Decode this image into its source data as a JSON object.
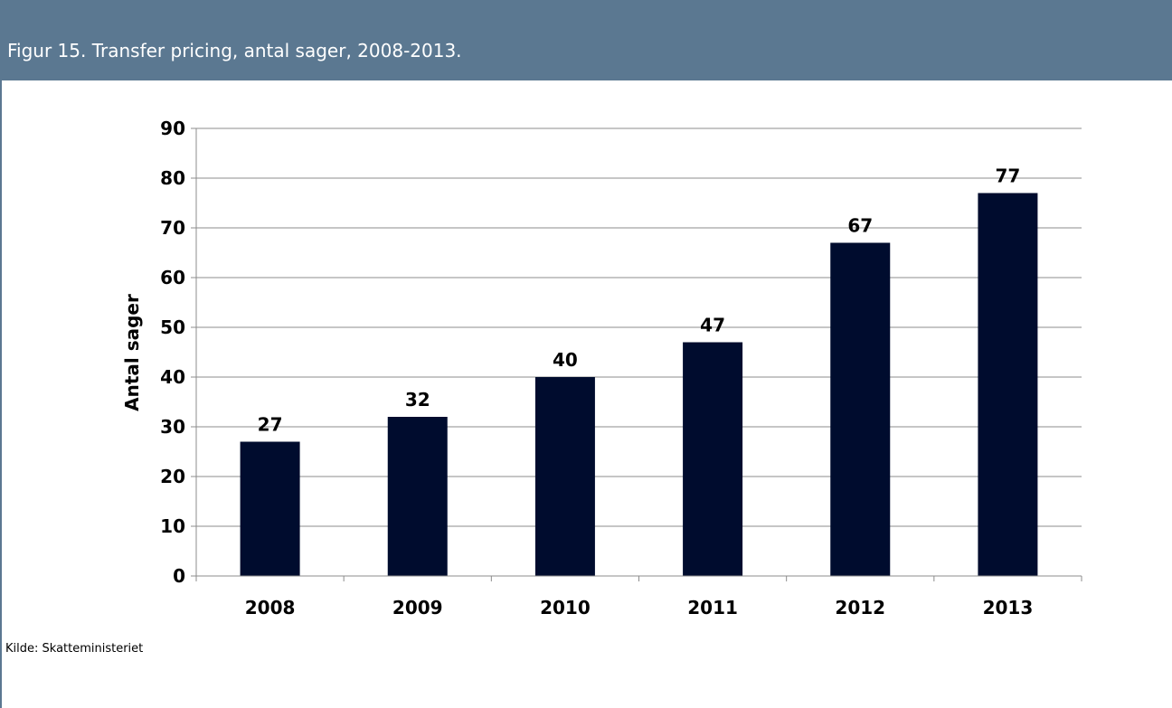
{
  "header": {
    "title": "Figur 15. Transfer pricing, antal sager, 2008-2013."
  },
  "source": "Kilde: Skatteministeriet",
  "colors": {
    "header_bg": "#5b7891",
    "bar": "#000c2e",
    "grid": "#8c8c8c"
  },
  "chart_data": {
    "type": "bar",
    "categories": [
      "2008",
      "2009",
      "2010",
      "2011",
      "2012",
      "2013"
    ],
    "values": [
      27,
      32,
      40,
      47,
      67,
      77
    ],
    "title": "",
    "xlabel": "",
    "ylabel": "Antal sager",
    "ylim": [
      0,
      90
    ],
    "yticks": [
      0,
      10,
      20,
      30,
      40,
      50,
      60,
      70,
      80,
      90
    ],
    "grid": true,
    "data_labels": true,
    "legend": "none"
  }
}
